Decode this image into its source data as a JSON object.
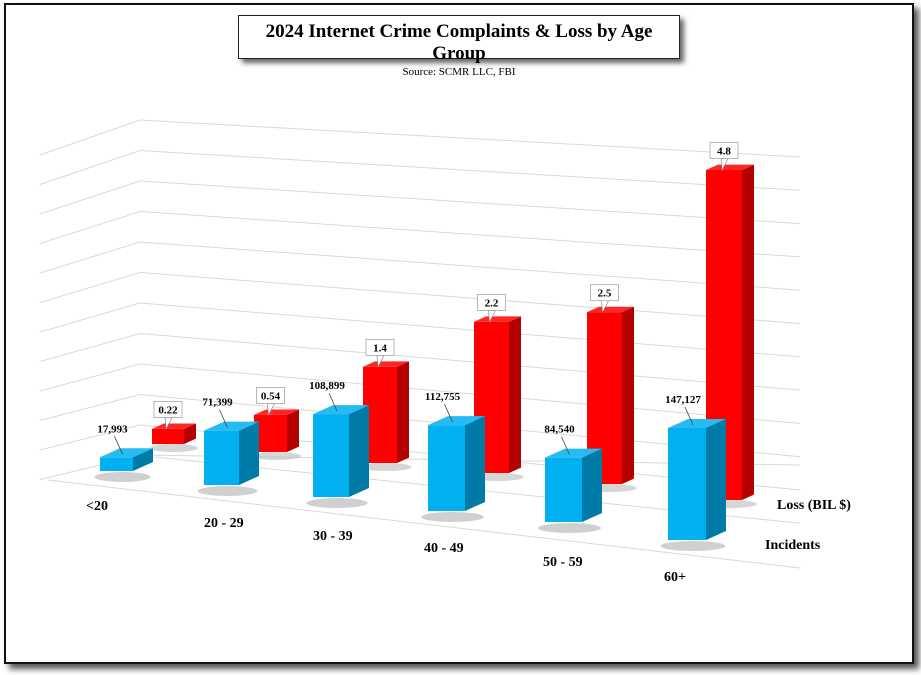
{
  "title": "2024 Internet Crime Complaints & Loss by Age Group",
  "subtitle": "Source: SCMR LLC, FBI",
  "colors": {
    "loss": "#ff0000",
    "incidents": "#00b0f0",
    "grid": "#d9d9d9"
  },
  "chart_data": {
    "type": "bar",
    "style": "3d-clustered",
    "title": "2024 Internet Crime Complaints & Loss by Age Group",
    "subtitle": "Source: SCMR LLC, FBI",
    "categories": [
      "<20",
      "20 - 29",
      "30 - 39",
      "40 - 49",
      "50 - 59",
      "60+"
    ],
    "series": [
      {
        "name": "Incidents",
        "values": [
          17993,
          71399,
          108899,
          112755,
          84540,
          147127
        ],
        "labels": [
          "17,993",
          "71,399",
          "108,899",
          "112,755",
          "84,540",
          "147,127"
        ]
      },
      {
        "name": "Loss (BIL $)",
        "values": [
          0.22,
          0.54,
          1.4,
          2.2,
          2.5,
          4.8
        ],
        "labels": [
          "0.22",
          "0.54",
          "1.4",
          "2.2",
          "2.5",
          "4.8"
        ]
      }
    ],
    "grid": true,
    "legend": "none"
  }
}
